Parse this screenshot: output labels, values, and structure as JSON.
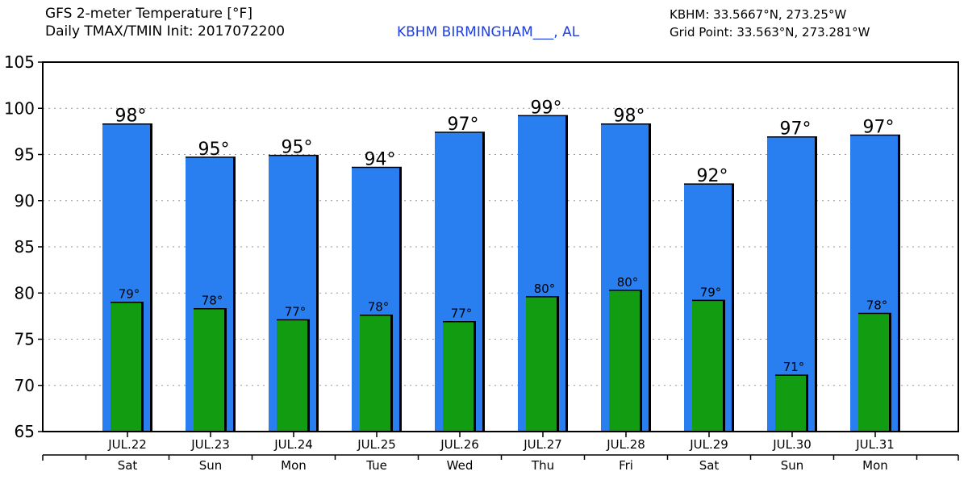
{
  "header": {
    "title_line1": "GFS 2-meter Temperature [°F]",
    "title_line2": "Daily TMAX/TMIN Init: 2017072200",
    "station": "KBHM BIRMINGHAM___, AL",
    "coord_line1": "KBHM: 33.5667°N, 273.25°W",
    "coord_line2": "Grid Point: 33.563°N, 273.281°W"
  },
  "colors": {
    "tmax_bar": "#2a7ff0",
    "tmin_bar": "#119c11",
    "grid": "#999999"
  },
  "chart_data": {
    "type": "bar",
    "ylim": [
      65,
      105
    ],
    "yticks": [
      65,
      70,
      75,
      80,
      85,
      90,
      95,
      100,
      105
    ],
    "grid": true,
    "dates": [
      "JUL.22",
      "JUL.23",
      "JUL.24",
      "JUL.25",
      "JUL.26",
      "JUL.27",
      "JUL.28",
      "JUL.29",
      "JUL.30",
      "JUL.31"
    ],
    "days": [
      "Sat",
      "Sun",
      "Mon",
      "Tue",
      "Wed",
      "Thu",
      "Fri",
      "Sat",
      "Sun",
      "Mon"
    ],
    "series": [
      {
        "values": [
          98.3,
          94.7,
          94.9,
          93.6,
          97.4,
          99.2,
          98.3,
          91.8,
          96.9,
          97.1
        ],
        "labels": [
          "98°",
          "95°",
          "95°",
          "94°",
          "97°",
          "99°",
          "98°",
          "92°",
          "97°",
          "97°"
        ]
      },
      {
        "values": [
          79.0,
          78.3,
          77.1,
          77.6,
          76.9,
          79.6,
          80.3,
          79.2,
          71.1,
          77.8
        ],
        "labels": [
          "79°",
          "78°",
          "77°",
          "78°",
          "77°",
          "80°",
          "80°",
          "79°",
          "71°",
          "78°"
        ]
      }
    ]
  }
}
